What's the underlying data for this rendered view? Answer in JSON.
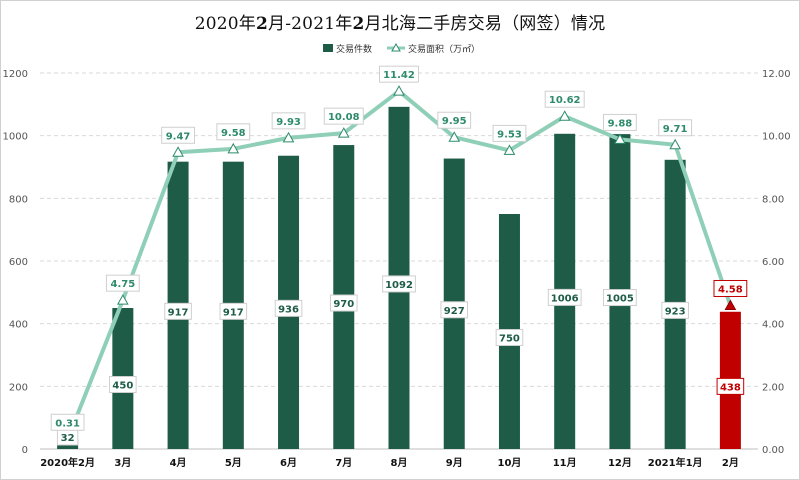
{
  "title_parts": [
    "2020年",
    "2",
    "月-2021年",
    "2",
    "月北海二手房交易（网签）情况"
  ],
  "chart_data": {
    "type": "bar",
    "title": "2020年2月-2021年2月北海二手房交易（网签）情况",
    "categories": [
      "2020年2月",
      "3月",
      "4月",
      "5月",
      "6月",
      "7月",
      "8月",
      "9月",
      "10月",
      "11月",
      "12月",
      "2021年1月",
      "2月"
    ],
    "series": [
      {
        "name": "交易件数",
        "kind": "bar",
        "axis": "left",
        "color": "#1e5c48",
        "highlight_color": "#c00000",
        "highlight_index": 12,
        "values": [
          32,
          450,
          917,
          917,
          936,
          970,
          1092,
          927,
          750,
          1006,
          1005,
          923,
          438
        ],
        "labels": [
          "32",
          "450",
          "917",
          "917",
          "936",
          "970",
          "1092",
          "927",
          "750",
          "1006",
          "1005",
          "923",
          "438"
        ]
      },
      {
        "name": "交易面积（万㎡）",
        "kind": "line",
        "axis": "right",
        "color": "#8fcfb8",
        "marker": "triangle",
        "values": [
          0.31,
          4.75,
          9.47,
          9.58,
          9.93,
          10.08,
          11.42,
          9.95,
          9.53,
          10.62,
          9.88,
          9.71,
          4.58
        ],
        "labels": [
          "0.31",
          "4.75",
          "9.47",
          "9.58",
          "9.93",
          "10.08",
          "11.42",
          "9.95",
          "9.53",
          "10.62",
          "9.88",
          "9.71",
          "4.58"
        ]
      }
    ],
    "y_left": {
      "min": 0,
      "max": 1200,
      "ticks": [
        "0",
        "200",
        "400",
        "600",
        "800",
        "1000",
        "1200"
      ]
    },
    "y_right": {
      "min": 0,
      "max": 12,
      "ticks": [
        "0.00",
        "2.00",
        "4.00",
        "6.00",
        "8.00",
        "10.00",
        "12.00"
      ]
    },
    "grid": "horizontal-dashed",
    "legend_position": "top"
  }
}
